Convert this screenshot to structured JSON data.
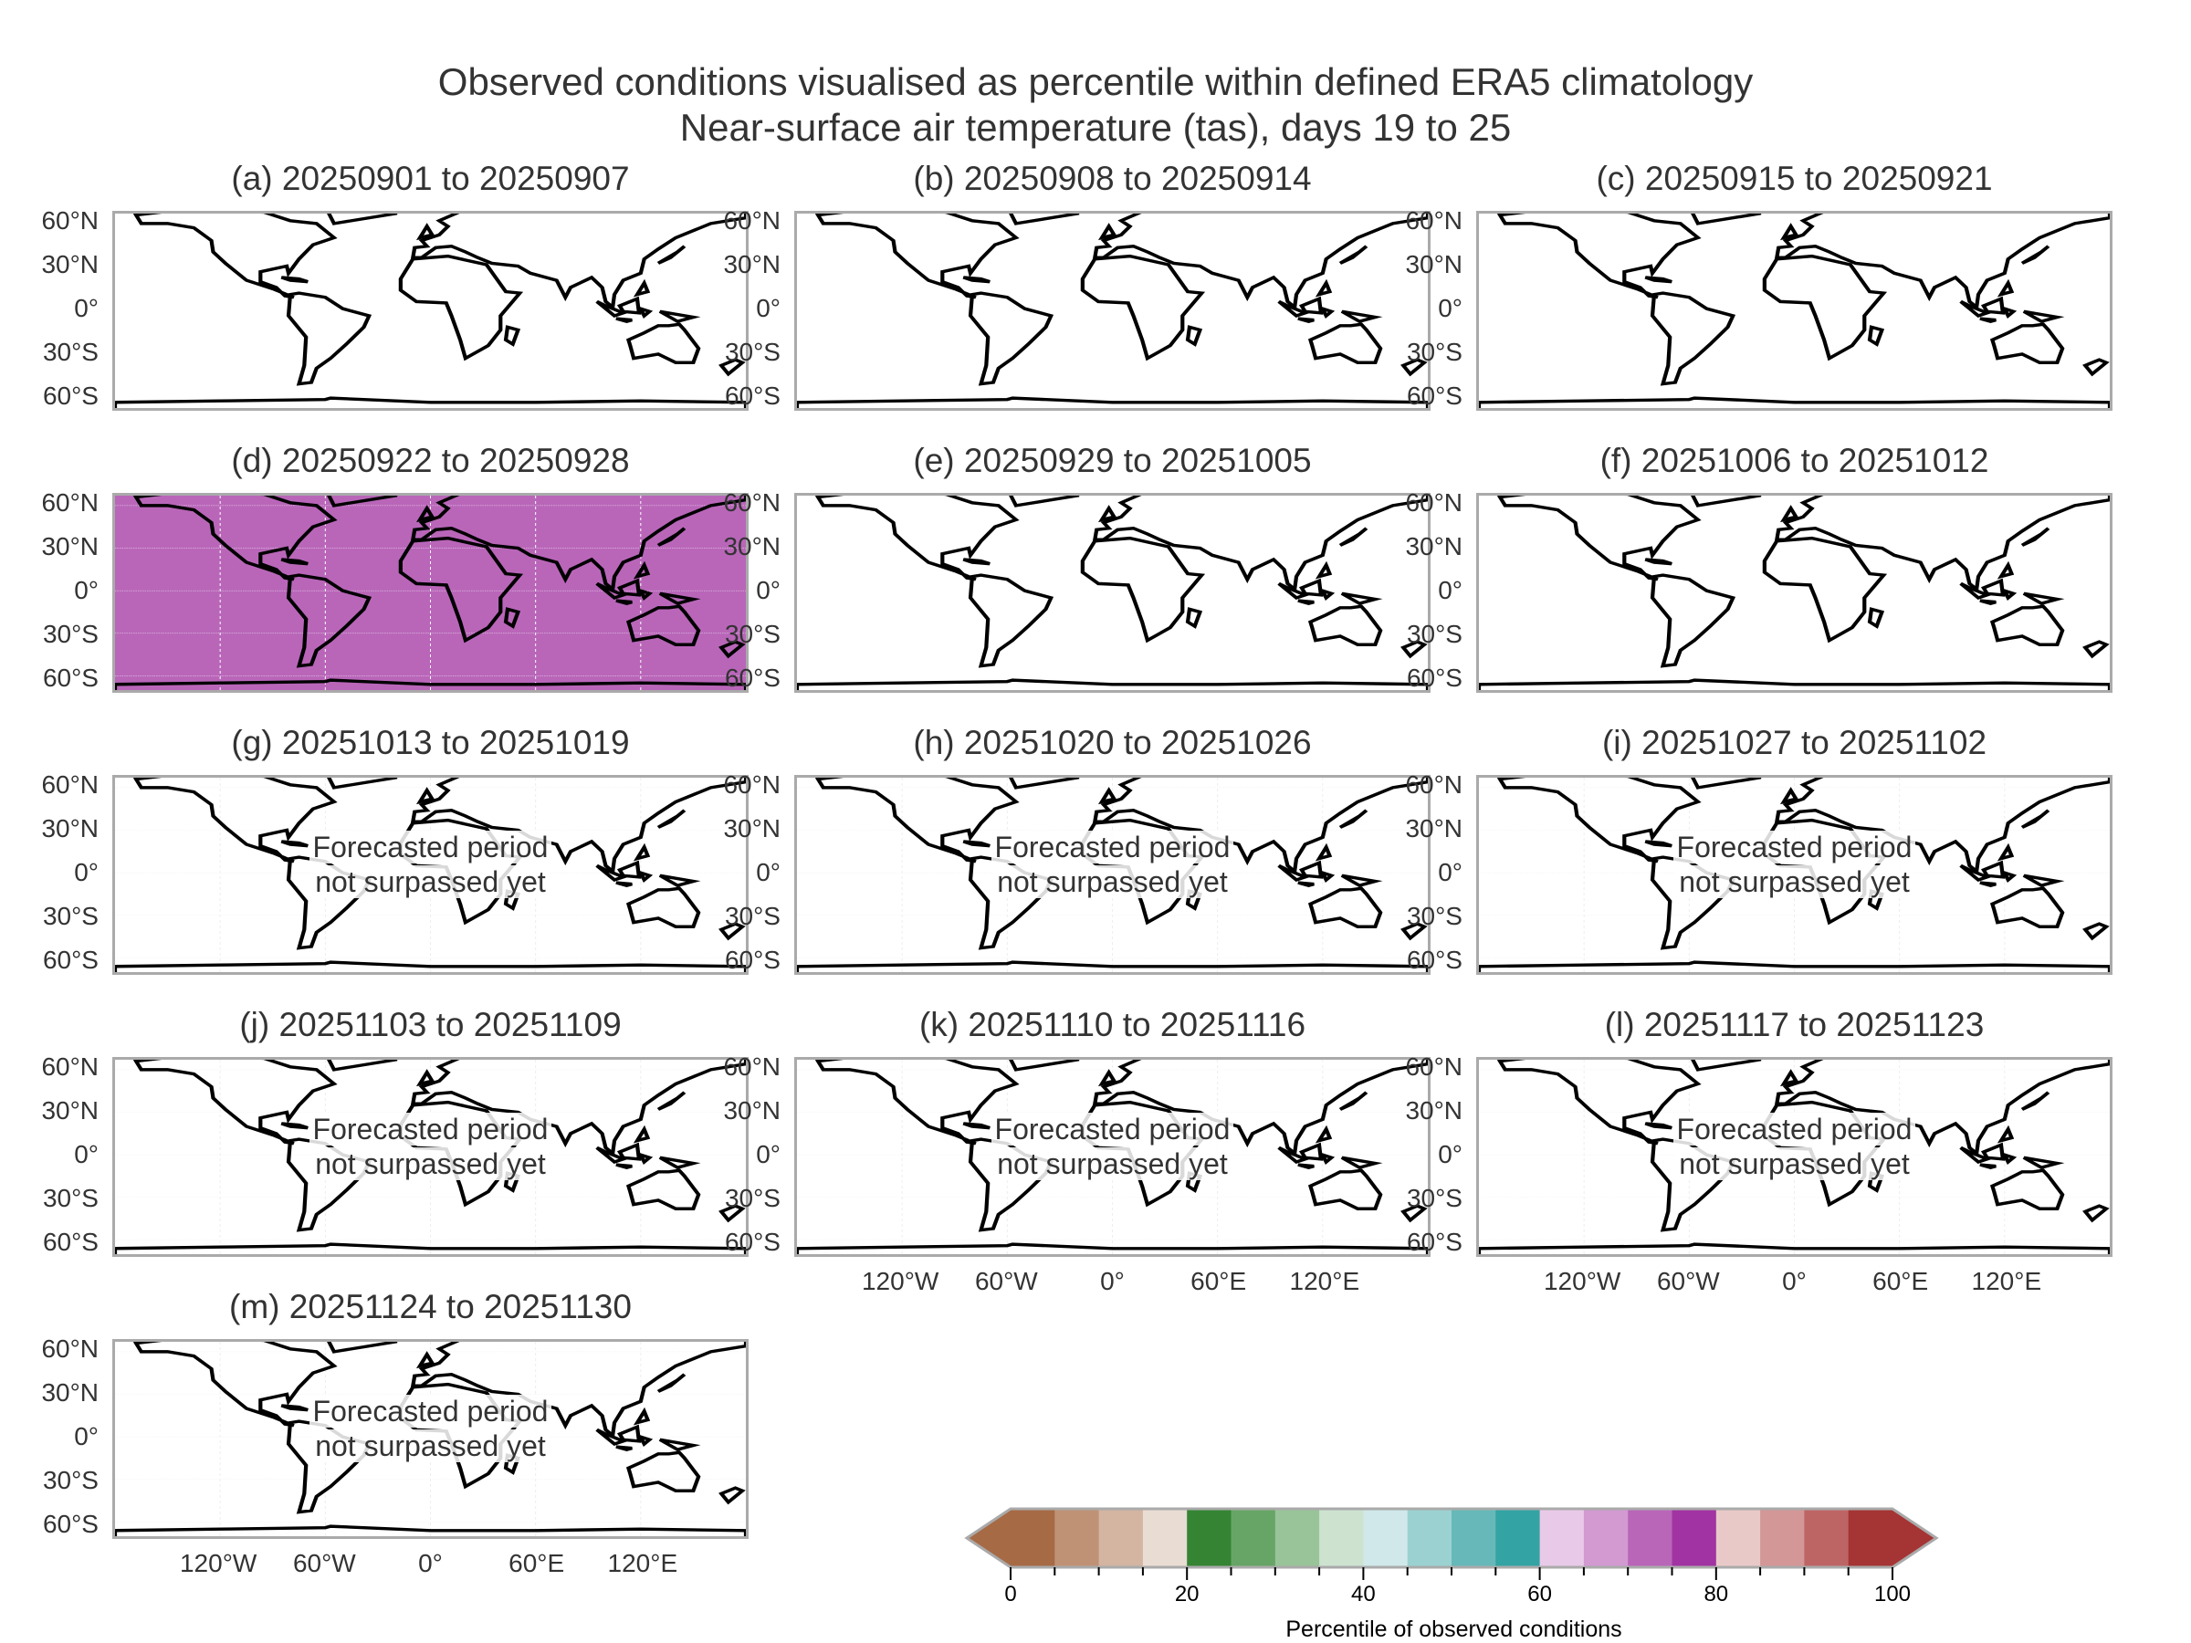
{
  "title_line1": "Observed conditions visualised as percentile within defined ERA5 climatology",
  "title_line2": "Near-surface air temperature (tas), days 19 to 25",
  "chart_data": {
    "type": "heatmap",
    "title": "Observed conditions visualised as percentile within defined ERA5 climatology — Near-surface air temperature (tas), days 19 to 25",
    "lat_ticks": [
      "60°N",
      "30°N",
      "0°",
      "30°S",
      "60°S"
    ],
    "lon_ticks": [
      "120°W",
      "60°W",
      "0°",
      "60°E",
      "120°E"
    ],
    "forecast_note": "Forecasted period not surpassed yet",
    "forecast_note_lines": [
      "Forecasted period",
      "not surpassed yet"
    ],
    "panels": [
      {
        "label": "(a) 20250901 to 20250907",
        "status": "observed"
      },
      {
        "label": "(b) 20250908 to 20250914",
        "status": "observed"
      },
      {
        "label": "(c) 20250915 to 20250921",
        "status": "observed"
      },
      {
        "label": "(d) 20250922 to 20250928",
        "status": "observed_partial"
      },
      {
        "label": "(e) 20250929 to 20251005",
        "status": "observed"
      },
      {
        "label": "(f) 20251006 to 20251012",
        "status": "observed"
      },
      {
        "label": "(g) 20251013 to 20251019",
        "status": "forecast"
      },
      {
        "label": "(h) 20251020 to 20251026",
        "status": "forecast"
      },
      {
        "label": "(i) 20251027 to 20251102",
        "status": "forecast"
      },
      {
        "label": "(j) 20251103 to 20251109",
        "status": "forecast"
      },
      {
        "label": "(k) 20251110 to 20251116",
        "status": "forecast"
      },
      {
        "label": "(l) 20251117 to 20251123",
        "status": "forecast"
      },
      {
        "label": "(m) 20251124 to 20251130",
        "status": "forecast"
      }
    ],
    "colorbar": {
      "label": "Percentile of observed conditions",
      "range": [
        0,
        100
      ],
      "extend": "both",
      "ticks": [
        "0",
        "20",
        "40",
        "60",
        "80",
        "100"
      ],
      "boundaries": [
        0,
        5,
        10,
        15,
        20,
        25,
        30,
        35,
        40,
        45,
        50,
        55,
        60,
        65,
        70,
        75,
        80,
        85,
        90,
        95,
        100
      ],
      "colors": [
        "#a66a45",
        "#bf9276",
        "#d3b5a1",
        "#e9dcd3",
        "#358434",
        "#67a566",
        "#99c499",
        "#cde3d0",
        "#d0e8ea",
        "#9bd2d1",
        "#66b9b8",
        "#33a3a4",
        "#e8cae8",
        "#d29ad1",
        "#b966b9",
        "#a233a2",
        "#e9c9c8",
        "#d39797",
        "#bd6565",
        "#a53434"
      ],
      "under_color": "#a66a45",
      "over_color": "#a53434"
    },
    "masked_ocean_color": "#b966b9"
  }
}
